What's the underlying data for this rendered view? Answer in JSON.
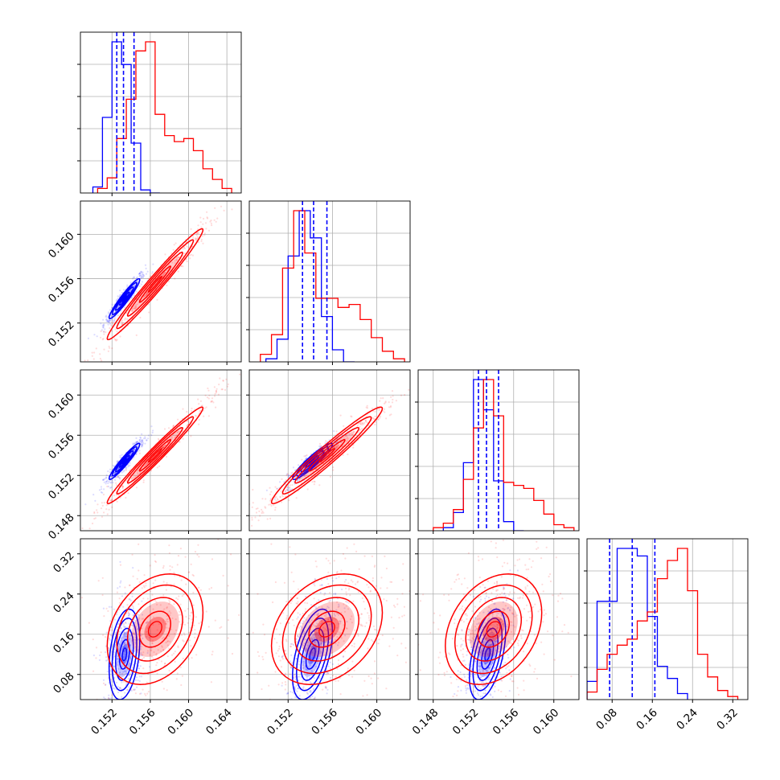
{
  "chart_data": {
    "type": "corner",
    "title": "",
    "grid": true,
    "legend": "none",
    "colors": {
      "blue": "#0000ff",
      "red": "#ff0000",
      "grid": "#b0b0b0",
      "axis": "#000000"
    },
    "parameter_ranges": [
      [
        0.1487,
        0.1655
      ],
      [
        0.1485,
        0.163
      ],
      [
        0.1465,
        0.1625
      ],
      [
        0.03,
        0.35
      ]
    ],
    "x_tick_labels": [
      [
        "0.152",
        "0.156",
        "0.160",
        "0.164"
      ],
      [
        "0.152",
        "0.156",
        "0.160"
      ],
      [
        "0.148",
        "0.152",
        "0.156",
        "0.160"
      ],
      [
        "0.08",
        "0.16",
        "0.24",
        "0.32"
      ]
    ],
    "y_tick_labels": [
      null,
      [
        "0.152",
        "0.156",
        "0.160"
      ],
      [
        "0.148",
        "0.152",
        "0.156",
        "0.160"
      ],
      [
        "0.08",
        "0.16",
        "0.24",
        "0.32"
      ]
    ],
    "x_ticks": [
      [
        0.152,
        0.156,
        0.16,
        0.164
      ],
      [
        0.152,
        0.156,
        0.16
      ],
      [
        0.148,
        0.152,
        0.156,
        0.16
      ],
      [
        0.08,
        0.16,
        0.24,
        0.32
      ]
    ],
    "y_ticks": [
      null,
      [
        0.152,
        0.156,
        0.16
      ],
      [
        0.148,
        0.152,
        0.156,
        0.16
      ],
      [
        0.08,
        0.16,
        0.24,
        0.32
      ]
    ],
    "quantile_lines_blue": [
      [
        0.1525,
        0.1532,
        0.1543
      ],
      [
        0.1533,
        0.1543,
        0.1555
      ],
      [
        0.1525,
        0.1533,
        0.1545
      ],
      [
        0.075,
        0.12,
        0.165
      ]
    ],
    "series": [
      {
        "color": "#0000ff",
        "marginals": [
          {
            "bins": [
              0.15,
              0.151,
              0.152,
              0.153,
              0.154,
              0.155,
              0.156,
              0.157
            ],
            "counts": [
              0.04,
              0.5,
              1.0,
              0.85,
              0.33,
              0.02,
              0.0
            ]
          },
          {
            "bins": [
              0.15,
              0.151,
              0.152,
              0.153,
              0.154,
              0.155,
              0.156,
              0.157,
              0.158
            ],
            "counts": [
              0.02,
              0.15,
              0.7,
              1.0,
              0.82,
              0.3,
              0.08,
              0.0
            ]
          },
          {
            "bins": [
              0.149,
              0.15,
              0.151,
              0.152,
              0.153,
              0.154,
              0.155,
              0.156,
              0.157
            ],
            "counts": [
              0.02,
              0.12,
              0.45,
              1.0,
              0.8,
              0.33,
              0.06,
              0.0
            ]
          },
          {
            "bins": [
              0.03,
              0.05,
              0.07,
              0.09,
              0.11,
              0.13,
              0.15,
              0.17,
              0.19,
              0.21,
              0.23
            ],
            "counts": [
              0.12,
              0.65,
              0.65,
              1.0,
              1.0,
              0.95,
              0.55,
              0.22,
              0.14,
              0.04
            ]
          }
        ],
        "mean": [
          0.1533,
          0.1542,
          0.1534,
          0.12
        ],
        "std": [
          0.0008,
          0.0009,
          0.0009,
          0.045
        ],
        "corr": [
          [
            1,
            0.95,
            0.95,
            0.3
          ],
          [
            0.95,
            1,
            0.93,
            0.5
          ],
          [
            0.95,
            0.93,
            1,
            0.5
          ],
          [
            0.3,
            0.5,
            0.5,
            1
          ]
        ]
      },
      {
        "color": "#ff0000",
        "marginals": [
          {
            "bins": [
              0.1505,
              0.1515,
              0.1525,
              0.1535,
              0.1545,
              0.1555,
              0.1565,
              0.1575,
              0.1585,
              0.1595,
              0.1605,
              0.1615,
              0.1625,
              0.1635,
              0.1645
            ],
            "counts": [
              0.03,
              0.1,
              0.36,
              0.62,
              0.94,
              1.0,
              0.52,
              0.38,
              0.34,
              0.36,
              0.28,
              0.16,
              0.09,
              0.03
            ]
          },
          {
            "bins": [
              0.1495,
              0.1505,
              0.1515,
              0.1525,
              0.1535,
              0.1545,
              0.1555,
              0.1565,
              0.1575,
              0.1585,
              0.1595,
              0.1605,
              0.1615,
              0.1625
            ],
            "counts": [
              0.05,
              0.18,
              0.62,
              1.0,
              0.72,
              0.42,
              0.42,
              0.36,
              0.38,
              0.28,
              0.16,
              0.07,
              0.02
            ]
          },
          {
            "bins": [
              0.148,
              0.149,
              0.15,
              0.151,
              0.152,
              0.153,
              0.154,
              0.155,
              0.156,
              0.157,
              0.158,
              0.159,
              0.16,
              0.161,
              0.162
            ],
            "counts": [
              0.02,
              0.05,
              0.14,
              0.34,
              0.68,
              1.0,
              0.76,
              0.32,
              0.3,
              0.28,
              0.2,
              0.11,
              0.04,
              0.02
            ]
          },
          {
            "bins": [
              0.03,
              0.05,
              0.07,
              0.09,
              0.11,
              0.13,
              0.15,
              0.17,
              0.19,
              0.21,
              0.23,
              0.25,
              0.27,
              0.29,
              0.31,
              0.33
            ],
            "counts": [
              0.05,
              0.2,
              0.3,
              0.36,
              0.4,
              0.52,
              0.58,
              0.8,
              0.92,
              1.0,
              0.72,
              0.3,
              0.15,
              0.06,
              0.02
            ]
          }
        ],
        "mean": [
          0.1565,
          0.1555,
          0.154,
          0.17
        ],
        "std": [
          0.0025,
          0.0025,
          0.0024,
          0.055
        ],
        "corr": [
          [
            1,
            0.98,
            0.98,
            0.3
          ],
          [
            0.98,
            1,
            0.97,
            0.3
          ],
          [
            0.98,
            0.97,
            1,
            0.3
          ],
          [
            0.3,
            0.3,
            0.3,
            1
          ]
        ]
      }
    ]
  }
}
